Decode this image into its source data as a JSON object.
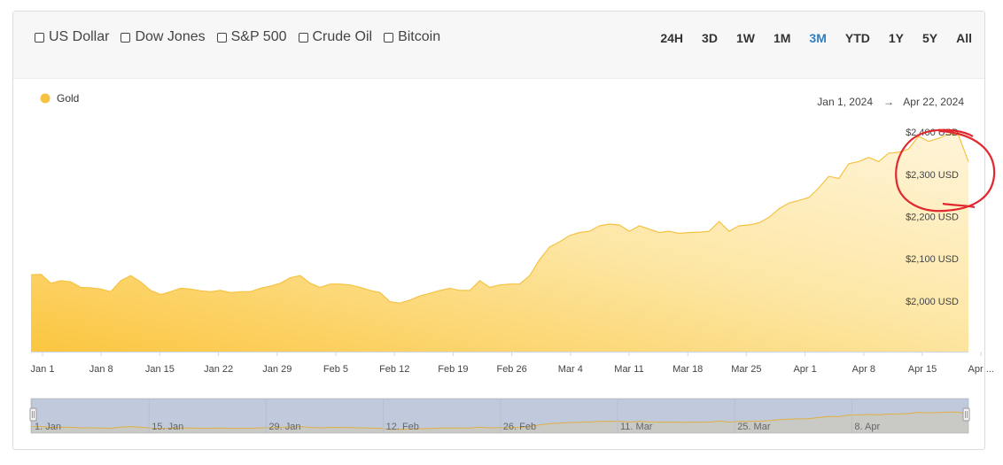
{
  "compare": {
    "items": [
      {
        "label": "US Dollar",
        "checked": false
      },
      {
        "label": "Dow Jones",
        "checked": false
      },
      {
        "label": "S&P 500",
        "checked": false
      },
      {
        "label": "Crude Oil",
        "checked": false
      },
      {
        "label": "Bitcoin",
        "checked": false
      }
    ]
  },
  "ranges": {
    "items": [
      "24H",
      "3D",
      "1W",
      "1M",
      "3M",
      "YTD",
      "1Y",
      "5Y",
      "All"
    ],
    "active": "3M"
  },
  "date_range": {
    "start": "Jan 1, 2024",
    "arrow": "→",
    "end": "Apr 22, 2024"
  },
  "colors": {
    "accent": "#2f7fc1",
    "series": "#f5c242",
    "annotation": "#e0282e"
  },
  "chart_data": {
    "type": "area",
    "legend": {
      "name": "Gold",
      "placement": "top-left"
    },
    "y_ticks": [
      {
        "value": 2000,
        "label": "$2,000 USD"
      },
      {
        "value": 2100,
        "label": "$2,100 USD"
      },
      {
        "value": 2200,
        "label": "$2,200 USD"
      },
      {
        "value": 2300,
        "label": "$2,300 USD"
      },
      {
        "value": 2400,
        "label": "$2,400 USD"
      }
    ],
    "ylim": [
      1880,
      2440
    ],
    "x_ticks": [
      "Jan 1",
      "Jan 8",
      "Jan 15",
      "Jan 22",
      "Jan 29",
      "Feb 5",
      "Feb 12",
      "Feb 19",
      "Feb 26",
      "Mar 4",
      "Mar 11",
      "Mar 18",
      "Mar 25",
      "Apr 1",
      "Apr 8",
      "Apr 15",
      "Apr ..."
    ],
    "grid": false,
    "x_start": "2024-01-01",
    "values": [
      2062,
      2063,
      2042,
      2048,
      2045,
      2032,
      2031,
      2028,
      2022,
      2048,
      2060,
      2045,
      2025,
      2015,
      2022,
      2030,
      2028,
      2024,
      2022,
      2025,
      2020,
      2022,
      2022,
      2030,
      2035,
      2042,
      2055,
      2060,
      2042,
      2032,
      2040,
      2040,
      2038,
      2032,
      2025,
      2020,
      1998,
      1995,
      2002,
      2012,
      2018,
      2025,
      2030,
      2025,
      2025,
      2048,
      2032,
      2038,
      2040,
      2040,
      2060,
      2098,
      2128,
      2140,
      2155,
      2162,
      2165,
      2178,
      2182,
      2180,
      2165,
      2178,
      2170,
      2162,
      2165,
      2160,
      2162,
      2163,
      2165,
      2188,
      2165,
      2178,
      2180,
      2185,
      2198,
      2218,
      2232,
      2238,
      2245,
      2268,
      2295,
      2290,
      2325,
      2330,
      2340,
      2330,
      2350,
      2352,
      2360,
      2390,
      2378,
      2385,
      2395,
      2393,
      2330
    ],
    "navigator": {
      "labels": [
        "1. Jan",
        "15. Jan",
        "29. Jan",
        "12. Feb",
        "26. Feb",
        "11. Mar",
        "25. Mar",
        "8. Apr"
      ]
    },
    "annotation": "hand-drawn red circle around the $2,300–$2,400 USD area"
  }
}
